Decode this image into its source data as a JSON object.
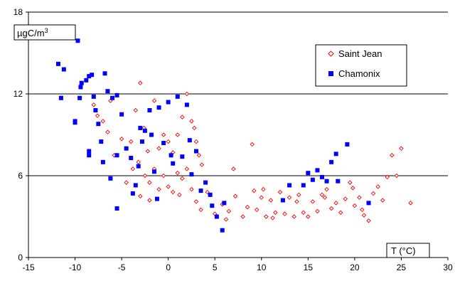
{
  "chart_data": {
    "type": "scatter",
    "title": "",
    "ylabel": "µgC/m",
    "ylabel_superscript": "3",
    "xlabel": "T (°C)",
    "xlim": [
      -15,
      30
    ],
    "ylim": [
      0,
      18
    ],
    "x_ticks": [
      -15,
      -10,
      -5,
      0,
      5,
      10,
      15,
      20,
      25,
      30
    ],
    "y_ticks": [
      0,
      6,
      12,
      18
    ],
    "grid": "horizontal major gridlines",
    "legend_position": "top-right",
    "series": [
      {
        "name": "Saint Jean",
        "marker": "open-diamond",
        "color": "#ff0000",
        "points": [
          [
            -8.0,
            11.2
          ],
          [
            -7.6,
            10.4
          ],
          [
            -7.0,
            10.0
          ],
          [
            -6.5,
            9.2
          ],
          [
            -6.2,
            11.5
          ],
          [
            -5.8,
            7.5
          ],
          [
            -5.0,
            8.7
          ],
          [
            -4.5,
            8.0
          ],
          [
            -4.0,
            8.5
          ],
          [
            -3.5,
            10.8
          ],
          [
            -3.0,
            12.8
          ],
          [
            -2.6,
            9.5
          ],
          [
            -2.2,
            7.8
          ],
          [
            -1.5,
            11.5
          ],
          [
            -1.0,
            8.0
          ],
          [
            -0.5,
            9.0
          ],
          [
            0.0,
            8.5
          ],
          [
            0.5,
            7.7
          ],
          [
            1.0,
            9.0
          ],
          [
            1.5,
            10.3
          ],
          [
            2.0,
            12.0
          ],
          [
            2.5,
            10.0
          ],
          [
            2.8,
            9.5
          ],
          [
            3.0,
            8.5
          ],
          [
            3.3,
            7.5
          ],
          [
            3.6,
            6.8
          ],
          [
            -4.5,
            5.5
          ],
          [
            -3.8,
            6.5
          ],
          [
            -3.2,
            7.0
          ],
          [
            -2.5,
            6.0
          ],
          [
            -2.0,
            5.5
          ],
          [
            -1.5,
            6.5
          ],
          [
            -1.0,
            5.0
          ],
          [
            -0.5,
            6.0
          ],
          [
            0.0,
            5.2
          ],
          [
            0.5,
            4.8
          ],
          [
            1.0,
            6.2
          ],
          [
            1.5,
            5.8
          ],
          [
            2.0,
            6.5
          ],
          [
            2.5,
            5.0
          ],
          [
            -3.0,
            4.5
          ],
          [
            -2.0,
            4.2
          ],
          [
            1.2,
            4.6
          ],
          [
            3.0,
            4.1
          ],
          [
            3.5,
            3.5
          ],
          [
            4.2,
            4.8
          ],
          [
            5.0,
            3.2
          ],
          [
            5.8,
            3.9
          ],
          [
            6.5,
            3.4
          ],
          [
            7.2,
            4.5
          ],
          [
            8.0,
            3.0
          ],
          [
            8.5,
            3.7
          ],
          [
            9.0,
            8.3
          ],
          [
            9.2,
            4.9
          ],
          [
            9.5,
            3.5
          ],
          [
            10.0,
            4.4
          ],
          [
            10.5,
            3.0
          ],
          [
            11.0,
            4.2
          ],
          [
            11.5,
            3.3
          ],
          [
            12.0,
            4.8
          ],
          [
            12.5,
            3.2
          ],
          [
            13.0,
            4.4
          ],
          [
            13.5,
            3.0
          ],
          [
            14.0,
            4.6
          ],
          [
            14.5,
            3.3
          ],
          [
            15.0,
            3.0
          ],
          [
            15.5,
            4.1
          ],
          [
            16.0,
            3.4
          ],
          [
            16.5,
            4.6
          ],
          [
            17.0,
            5.0
          ],
          [
            17.5,
            3.6
          ],
          [
            18.0,
            4.0
          ],
          [
            18.5,
            3.3
          ],
          [
            19.0,
            4.3
          ],
          [
            19.5,
            5.5
          ],
          [
            20.0,
            3.8
          ],
          [
            20.5,
            4.4
          ],
          [
            21.0,
            3.1
          ],
          [
            21.5,
            2.7
          ],
          [
            22.0,
            4.7
          ],
          [
            22.5,
            5.2
          ],
          [
            23.0,
            4.2
          ],
          [
            23.5,
            5.9
          ],
          [
            24.0,
            7.5
          ],
          [
            24.5,
            6.0
          ],
          [
            25.0,
            8.0
          ],
          [
            26.0,
            4.0
          ],
          [
            7.0,
            6.5
          ],
          [
            10.2,
            5.0
          ],
          [
            13.8,
            4.1
          ],
          [
            16.8,
            4.4
          ],
          [
            19.8,
            5.1
          ],
          [
            6.2,
            2.8
          ],
          [
            11.2,
            2.9
          ],
          [
            20.8,
            3.5
          ]
        ]
      },
      {
        "name": "Chamonix",
        "marker": "filled-square",
        "color": "#0000ff",
        "points": [
          [
            -11.8,
            14.2
          ],
          [
            -11.2,
            13.8
          ],
          [
            -11.5,
            11.7
          ],
          [
            -10.0,
            10.0
          ],
          [
            -9.7,
            15.9
          ],
          [
            -9.5,
            11.7
          ],
          [
            -9.4,
            12.5
          ],
          [
            -9.3,
            12.8
          ],
          [
            -8.8,
            13.0
          ],
          [
            -8.5,
            13.3
          ],
          [
            -8.2,
            13.4
          ],
          [
            -8.5,
            7.8
          ],
          [
            -8.0,
            11.8
          ],
          [
            -7.8,
            10.8
          ],
          [
            -7.5,
            9.8
          ],
          [
            -7.2,
            8.5
          ],
          [
            -6.8,
            13.5
          ],
          [
            -6.5,
            12.2
          ],
          [
            -6.0,
            11.7
          ],
          [
            -7.0,
            7.0
          ],
          [
            -6.2,
            5.8
          ],
          [
            -5.5,
            11.9
          ],
          [
            -5.0,
            10.5
          ],
          [
            -4.5,
            8.0
          ],
          [
            -4.0,
            7.3
          ],
          [
            -3.8,
            4.7
          ],
          [
            -3.5,
            5.3
          ],
          [
            -3.2,
            6.7
          ],
          [
            -3.0,
            9.5
          ],
          [
            -2.8,
            8.5
          ],
          [
            -2.5,
            9.3
          ],
          [
            -2.0,
            10.8
          ],
          [
            -1.8,
            9.0
          ],
          [
            -1.5,
            6.3
          ],
          [
            -1.2,
            4.3
          ],
          [
            -1.0,
            11.0
          ],
          [
            -0.5,
            8.4
          ],
          [
            0.0,
            11.4
          ],
          [
            0.3,
            7.5
          ],
          [
            0.5,
            6.9
          ],
          [
            1.0,
            11.8
          ],
          [
            1.5,
            7.4
          ],
          [
            2.0,
            11.2
          ],
          [
            2.3,
            8.6
          ],
          [
            2.5,
            6.1
          ],
          [
            3.0,
            7.8
          ],
          [
            3.5,
            4.9
          ],
          [
            4.0,
            5.5
          ],
          [
            4.5,
            4.6
          ],
          [
            4.7,
            3.8
          ],
          [
            5.2,
            3.0
          ],
          [
            5.8,
            2.0
          ],
          [
            6.0,
            4.0
          ],
          [
            -5.5,
            3.6
          ],
          [
            -5.5,
            7.5
          ],
          [
            -8.5,
            7.5
          ],
          [
            12.3,
            4.2
          ],
          [
            13.0,
            5.3
          ],
          [
            14.5,
            5.3
          ],
          [
            15.0,
            6.2
          ],
          [
            15.5,
            5.7
          ],
          [
            16.0,
            6.4
          ],
          [
            16.5,
            5.9
          ],
          [
            17.0,
            5.6
          ],
          [
            17.5,
            7.0
          ],
          [
            18.0,
            7.6
          ],
          [
            18.2,
            5.6
          ],
          [
            19.2,
            8.3
          ],
          [
            21.5,
            4.0
          ],
          [
            -10.0,
            9.9
          ]
        ]
      }
    ]
  }
}
